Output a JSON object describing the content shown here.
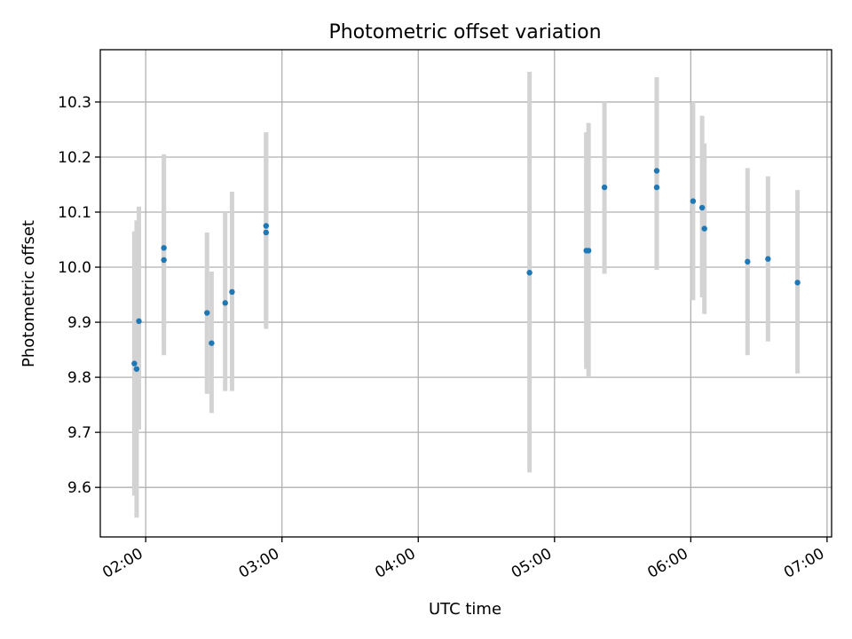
{
  "chart_data": {
    "type": "scatter",
    "title": "Photometric offset variation",
    "xlabel": "UTC time",
    "ylabel": "Photometric offset",
    "grid": true,
    "xlim": [
      "01:40",
      "07:02"
    ],
    "ylim": [
      9.51,
      10.395
    ],
    "x_ticks": [
      "02:00",
      "03:00",
      "04:00",
      "05:00",
      "06:00",
      "07:00"
    ],
    "y_ticks": [
      "9.6",
      "9.7",
      "9.8",
      "9.9",
      "10.0",
      "10.1",
      "10.2",
      "10.3"
    ],
    "error_bar_color": "#d3d3d3",
    "marker_color": "#1f77b4",
    "points": [
      {
        "x": "01:55",
        "y": 9.825,
        "ylow": 9.585,
        "yhigh": 10.065
      },
      {
        "x": "01:56",
        "y": 9.815,
        "ylow": 9.545,
        "yhigh": 10.085
      },
      {
        "x": "01:57",
        "y": 9.902,
        "ylow": 9.705,
        "yhigh": 10.11
      },
      {
        "x": "02:08",
        "y": 10.035,
        "ylow": 9.865,
        "yhigh": 10.205
      },
      {
        "x": "02:08",
        "y": 10.013,
        "ylow": 9.84,
        "yhigh": 10.185
      },
      {
        "x": "02:27",
        "y": 9.917,
        "ylow": 9.77,
        "yhigh": 10.063
      },
      {
        "x": "02:29",
        "y": 9.862,
        "ylow": 9.735,
        "yhigh": 9.992
      },
      {
        "x": "02:35",
        "y": 9.935,
        "ylow": 9.775,
        "yhigh": 10.1
      },
      {
        "x": "02:38",
        "y": 9.955,
        "ylow": 9.775,
        "yhigh": 10.137
      },
      {
        "x": "02:53",
        "y": 10.075,
        "ylow": 9.905,
        "yhigh": 10.245
      },
      {
        "x": "02:53",
        "y": 10.063,
        "ylow": 9.888,
        "yhigh": 10.24
      },
      {
        "x": "04:49",
        "y": 9.99,
        "ylow": 9.627,
        "yhigh": 10.355
      },
      {
        "x": "05:14",
        "y": 10.03,
        "ylow": 9.815,
        "yhigh": 10.245
      },
      {
        "x": "05:15",
        "y": 10.03,
        "ylow": 9.8,
        "yhigh": 10.262
      },
      {
        "x": "05:22",
        "y": 10.145,
        "ylow": 9.988,
        "yhigh": 10.3
      },
      {
        "x": "05:45",
        "y": 10.175,
        "ylow": 10.005,
        "yhigh": 10.345
      },
      {
        "x": "05:45",
        "y": 10.145,
        "ylow": 9.995,
        "yhigh": 10.298
      },
      {
        "x": "06:01",
        "y": 10.12,
        "ylow": 9.94,
        "yhigh": 10.3
      },
      {
        "x": "06:05",
        "y": 10.108,
        "ylow": 9.945,
        "yhigh": 10.275
      },
      {
        "x": "06:06",
        "y": 10.07,
        "ylow": 9.915,
        "yhigh": 10.225
      },
      {
        "x": "06:25",
        "y": 10.01,
        "ylow": 9.84,
        "yhigh": 10.18
      },
      {
        "x": "06:34",
        "y": 10.015,
        "ylow": 9.865,
        "yhigh": 10.165
      },
      {
        "x": "06:47",
        "y": 9.972,
        "ylow": 9.807,
        "yhigh": 10.14
      }
    ]
  }
}
